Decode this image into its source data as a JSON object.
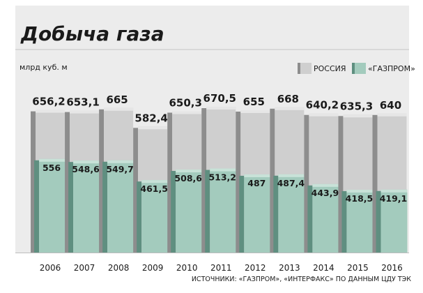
{
  "colors": {
    "russia_fill": "#cfcfcf",
    "russia_side": "#8d8d8d",
    "russia_top": "#e6e6e6",
    "gazprom_fill": "#a3cbbd",
    "gazprom_side": "#5f8f80",
    "gazprom_top": "#c8e2d8",
    "panel_bg": "#ececec",
    "text": "#1a1a1a"
  },
  "chart_data": {
    "type": "bar",
    "title": "Добыча газа",
    "ylabel": "млрд куб. м",
    "categories": [
      "2006",
      "2007",
      "2008",
      "2009",
      "2010",
      "2011",
      "2012",
      "2013",
      "2014",
      "2015",
      "2016"
    ],
    "series": [
      {
        "name": "РОССИЯ",
        "values": [
          656.2,
          653.1,
          665,
          582.4,
          650.3,
          670.5,
          655,
          668,
          640.2,
          635.3,
          640
        ],
        "labels": [
          "656,2",
          "653,1",
          "665",
          "582,4",
          "650,3",
          "670,5",
          "655",
          "668",
          "640,2",
          "635,3",
          "640"
        ]
      },
      {
        "name": "«ГАЗПРОМ»",
        "values": [
          556,
          548.6,
          549.7,
          461.5,
          508.6,
          513.2,
          487,
          487.4,
          443.9,
          418.5,
          419.1
        ],
        "labels": [
          "556",
          "548,6",
          "549,7",
          "461,5",
          "508,6",
          "513,2",
          "487",
          "487,4",
          "443,9",
          "418,5",
          "419,1"
        ]
      }
    ],
    "legend_position": "top-right",
    "source": "ИСТОЧНИКИ: «ГАЗПРОМ», «ИНТЕРФАКС» ПО ДАННЫМ ЦДУ ТЭК"
  }
}
